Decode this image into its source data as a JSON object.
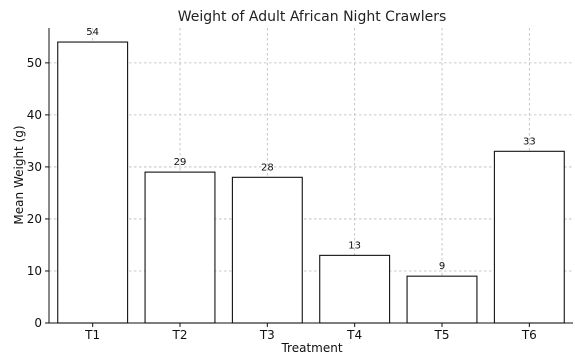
{
  "chart_data": {
    "type": "bar",
    "title": "Weight of Adult African Night Crawlers",
    "xlabel": "Treatment",
    "ylabel": "Mean Weight (g)",
    "categories": [
      "T1",
      "T2",
      "T3",
      "T4",
      "T5",
      "T6"
    ],
    "values": [
      54,
      29,
      28,
      13,
      9,
      33
    ],
    "data_labels": [
      "54",
      "29",
      "28",
      "13",
      "9",
      "33"
    ],
    "ylim": [
      0,
      56.7
    ],
    "yticks": [
      0,
      10,
      20,
      30,
      40,
      50
    ],
    "ytick_labels": [
      "0",
      "10",
      "20",
      "30",
      "40",
      "50"
    ],
    "grid": true,
    "bar_fill": "#ffffff",
    "bar_edge": "#111111"
  }
}
